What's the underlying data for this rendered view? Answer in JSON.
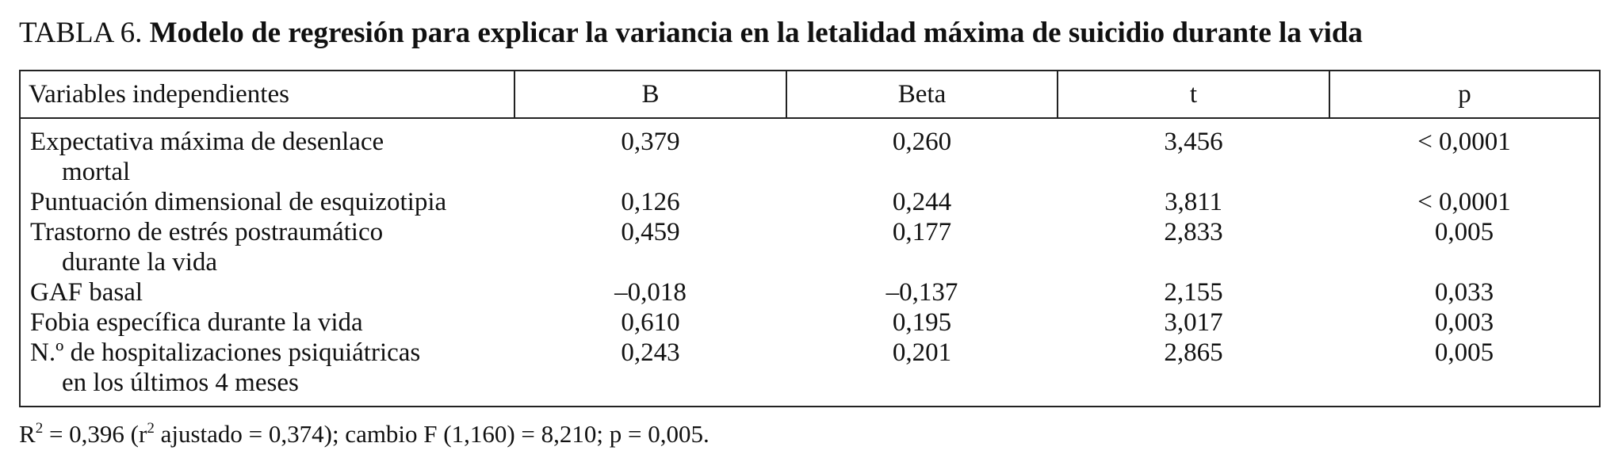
{
  "title": {
    "label": "TABLA 6.",
    "caption": "Modelo de regresión para explicar la variancia en la letalidad máxima de suicidio durante la vida"
  },
  "table": {
    "headers": [
      "Variables independientes",
      "B",
      "Beta",
      "t",
      "p"
    ],
    "rows": [
      {
        "var": "Expectativa máxima de desenlace",
        "var_cont": "mortal",
        "b": "0,379",
        "beta": "0,260",
        "t": "3,456",
        "p": "< 0,0001"
      },
      {
        "var": "Puntuación dimensional de esquizotipia",
        "var_cont": "",
        "b": "0,126",
        "beta": "0,244",
        "t": "3,811",
        "p": "< 0,0001"
      },
      {
        "var": "Trastorno de estrés postraumático",
        "var_cont": "durante la vida",
        "b": "0,459",
        "beta": "0,177",
        "t": "2,833",
        "p": "0,005"
      },
      {
        "var": "GAF basal",
        "var_cont": "",
        "b": "–0,018",
        "beta": "–0,137",
        "t": "2,155",
        "p": "0,033"
      },
      {
        "var": "Fobia específica durante la vida",
        "var_cont": "",
        "b": "0,610",
        "beta": "0,195",
        "t": "3,017",
        "p": "0,003"
      },
      {
        "var": "N.º de hospitalizaciones psiquiátricas",
        "var_cont": "en los últimos 4 meses",
        "b": "0,243",
        "beta": "0,201",
        "t": "2,865",
        "p": "0,005"
      }
    ]
  },
  "footnote": {
    "r_label": "R",
    "r_exp": "2",
    "part1": " = 0,396 (r",
    "r2_exp": "2",
    "part2": " ajustado = 0,374); cambio F (1,160) = 8,210; p = 0,005."
  }
}
